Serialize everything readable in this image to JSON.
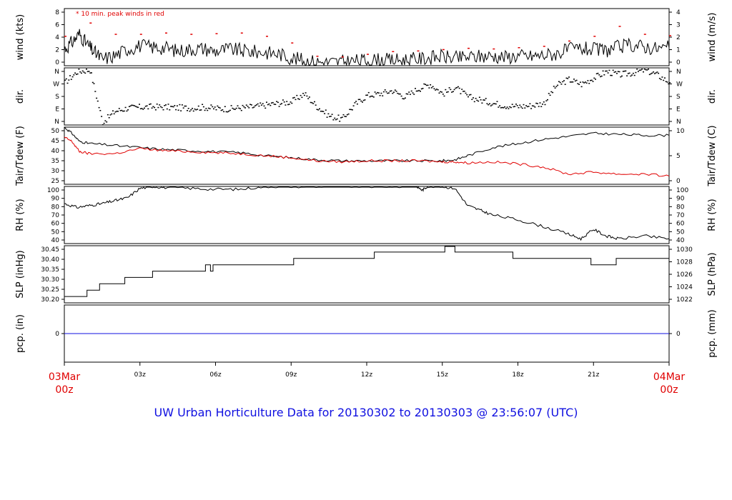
{
  "footer": "UW Urban Horticulture Data for 20130302  to  20130303 @ 23:56:07  (UTC)",
  "colors": {
    "primary": "#000000",
    "secondary": "#e00000",
    "precip": "#1010e0",
    "footer": "#1010e0",
    "edge_time": "#e00000"
  },
  "time_axis": {
    "start": "03Mar 00z",
    "end": "04Mar 00z",
    "start_label": [
      "03Mar",
      "00z"
    ],
    "end_label": [
      "04Mar",
      "00z"
    ],
    "ticks": [
      "03z",
      "06z",
      "09z",
      "12z",
      "15z",
      "18z",
      "21z"
    ]
  },
  "chart_data": [
    {
      "id": "wind",
      "type": "line",
      "ylabel_left": "wind (kts)",
      "ylabel_right": "wind (m/s)",
      "ylim": [
        0,
        8.6
      ],
      "yticks_left": [
        "0",
        "2",
        "4",
        "6",
        "8"
      ],
      "yticks_right": [
        "0",
        "1",
        "2",
        "3",
        "4"
      ],
      "annotation": "10 min. peak winds in red",
      "series": [
        {
          "color": "#000000",
          "x_hours": [
            0,
            0.3,
            0.6,
            0.9,
            1.2,
            1.5,
            2,
            2.5,
            3,
            3.5,
            4,
            4.5,
            5,
            5.5,
            6,
            6.5,
            7,
            7.5,
            8,
            8.5,
            9,
            9.5,
            10,
            10.5,
            11,
            11.5,
            12,
            12.5,
            13,
            13.5,
            14,
            14.5,
            15,
            15.5,
            16,
            16.5,
            17,
            17.5,
            18,
            18.5,
            19,
            19.5,
            20,
            20.5,
            21,
            21.5,
            22,
            22.5,
            23,
            23.5,
            24
          ],
          "values": [
            2.5,
            3.5,
            4.8,
            3.2,
            2,
            1,
            1.5,
            2.5,
            3,
            2.8,
            2.7,
            2.2,
            2.5,
            2.6,
            2.2,
            2.5,
            2.3,
            2.1,
            2,
            1.8,
            1.2,
            0.8,
            0.6,
            0.5,
            0.6,
            0.7,
            0.8,
            0.9,
            0.8,
            0.9,
            1,
            1.2,
            1.4,
            1.1,
            1.3,
            1.4,
            1.5,
            1.3,
            1.5,
            1.4,
            1.6,
            1.8,
            2.4,
            2.6,
            2.4,
            2.3,
            2.8,
            3.1,
            2.9,
            2.6,
            2.7
          ]
        },
        {
          "name": "10 min. peak winds",
          "color": "#e00000",
          "x_hours": [
            0,
            1,
            2,
            3,
            4,
            5,
            6,
            7,
            8,
            9,
            10,
            11,
            12,
            13,
            14,
            15,
            16,
            17,
            18,
            19,
            20,
            21,
            22,
            23,
            24
          ],
          "values": [
            4.5,
            6.5,
            4.8,
            4.8,
            5,
            4.8,
            4.9,
            5,
            4.5,
            3.5,
            1.5,
            1.4,
            1.8,
            2.2,
            2.3,
            2.5,
            2.7,
            2.6,
            2.8,
            3,
            3.8,
            4.5,
            6,
            4.8,
            4.6
          ]
        }
      ]
    },
    {
      "id": "dir",
      "type": "scatter",
      "ylabel_left": "dir.",
      "ylabel_right": "dir.",
      "ylim": [
        0,
        360
      ],
      "yticks_left": [
        "N",
        "E",
        "S",
        "W",
        "N"
      ],
      "yticks_right": [
        "N",
        "E",
        "S",
        "W",
        "N"
      ],
      "series": [
        {
          "color": "#000000",
          "x_hours": [
            0,
            0.5,
            1,
            1.5,
            2,
            2.5,
            3,
            3.5,
            4,
            4.5,
            5,
            5.5,
            6,
            6.5,
            7,
            7.5,
            8,
            8.5,
            9,
            9.5,
            10,
            10.5,
            11,
            11.5,
            12,
            12.5,
            13,
            13.5,
            14,
            14.5,
            15,
            15.5,
            16,
            16.5,
            17,
            17.5,
            18,
            18.5,
            19,
            19.5,
            20,
            20.5,
            21,
            21.5,
            22,
            22.5,
            23,
            23.5,
            24
          ],
          "values": [
            270,
            340,
            350,
            20,
            90,
            110,
            115,
            118,
            116,
            112,
            110,
            115,
            108,
            105,
            112,
            118,
            130,
            140,
            150,
            200,
            120,
            60,
            40,
            130,
            190,
            200,
            220,
            180,
            230,
            260,
            200,
            240,
            180,
            160,
            140,
            125,
            120,
            125,
            140,
            250,
            290,
            260,
            300,
            340,
            320,
            330,
            350,
            320,
            270
          ]
        }
      ]
    },
    {
      "id": "temp",
      "type": "line",
      "ylabel_left": "Tair/Tdew (F)",
      "ylabel_right": "Tair/Tdew (C)",
      "ylim": [
        25,
        53
      ],
      "yticks_left": [
        "25",
        "30",
        "35",
        "40",
        "45",
        "50"
      ],
      "yticks_right": [
        "0",
        "5",
        "10"
      ],
      "series": [
        {
          "name": "Tair",
          "color": "#000000",
          "x_hours": [
            0,
            0.3,
            0.6,
            1,
            2,
            3,
            4,
            5,
            6,
            7,
            8,
            9,
            10,
            11,
            12,
            13,
            14,
            15,
            15.5,
            16,
            17,
            18,
            19,
            20,
            21,
            22,
            23,
            24
          ],
          "values": [
            53,
            50,
            46,
            45,
            44,
            43,
            42,
            41.5,
            41,
            40.5,
            39,
            38,
            37,
            36.5,
            36.5,
            36.5,
            36.5,
            36.5,
            37,
            39,
            43,
            45,
            47,
            48.5,
            50,
            49.5,
            49,
            49
          ]
        },
        {
          "name": "Tdew",
          "color": "#e00000",
          "x_hours": [
            0,
            0.3,
            0.6,
            1,
            2,
            3,
            4,
            5,
            6,
            7,
            8,
            9,
            10,
            11,
            12,
            13,
            14,
            15,
            15.5,
            16,
            17,
            18,
            19,
            20,
            21,
            22,
            23,
            24
          ],
          "values": [
            48,
            46,
            41,
            40,
            40,
            42.5,
            41.5,
            41,
            40.5,
            40,
            39,
            38,
            36.5,
            36,
            36.5,
            36.5,
            36.5,
            36,
            36,
            35.5,
            36,
            35,
            33.5,
            30,
            31,
            30,
            30,
            29
          ]
        }
      ]
    },
    {
      "id": "rh",
      "type": "line",
      "ylabel_left": "RH (%)",
      "ylabel_right": "RH (%)",
      "ylim": [
        40,
        100
      ],
      "yticks_left": [
        "40",
        "50",
        "60",
        "70",
        "80",
        "90",
        "100"
      ],
      "yticks_right": [
        "40",
        "50",
        "60",
        "70",
        "80",
        "90",
        "100"
      ],
      "series": [
        {
          "color": "#000000",
          "x_hours": [
            0,
            0.5,
            1,
            1.5,
            2,
            2.5,
            3,
            3.5,
            4,
            5,
            6,
            7,
            8,
            9,
            10,
            11,
            12,
            13,
            14,
            14.2,
            14.4,
            15,
            15.5,
            16,
            16.5,
            17,
            18,
            19,
            20,
            20.5,
            21,
            21.5,
            22,
            23,
            24
          ],
          "values": [
            82,
            78,
            80,
            82,
            85,
            88,
            98,
            100,
            99,
            98,
            97,
            97,
            100,
            100,
            100,
            100,
            100,
            100,
            100,
            96,
            100,
            100,
            98,
            80,
            75,
            70,
            65,
            58,
            50,
            45,
            55,
            48,
            45,
            48,
            45
          ]
        }
      ]
    },
    {
      "id": "slp",
      "type": "line",
      "ylabel_left": "SLP (inHg)",
      "ylabel_right": "SLP (hPa)",
      "ylim": [
        30.18,
        30.45
      ],
      "yticks_left": [
        "30.20",
        "30.25",
        "30.30",
        "30.35",
        "30.40",
        "30.45"
      ],
      "yticks_right": [
        "1022",
        "1024",
        "1026",
        "1028",
        "1030"
      ],
      "series": [
        {
          "color": "#000000",
          "x_hours": [
            0,
            0.9,
            0.9,
            1.4,
            1.4,
            2.4,
            2.4,
            3.5,
            3.5,
            5.6,
            5.6,
            5.8,
            5.8,
            5.9,
            5.9,
            6.1,
            6.1,
            9.1,
            9.1,
            12.3,
            12.3,
            15.1,
            15.1,
            15.5,
            15.5,
            17.8,
            17.8,
            20.9,
            20.9,
            21.9,
            21.9,
            24
          ],
          "values": [
            30.21,
            30.21,
            30.24,
            30.24,
            30.27,
            30.27,
            30.3,
            30.3,
            30.33,
            30.33,
            30.36,
            30.36,
            30.33,
            30.33,
            30.36,
            30.36,
            30.36,
            30.36,
            30.39,
            30.39,
            30.42,
            30.42,
            30.45,
            30.45,
            30.42,
            30.42,
            30.39,
            30.39,
            30.36,
            30.36,
            30.39,
            30.39
          ]
        }
      ]
    },
    {
      "id": "pcp",
      "type": "line",
      "ylabel_left": "pcp. (in)",
      "ylabel_right": "pcp. (mm)",
      "ylim": [
        -1,
        1
      ],
      "yticks_left": [
        "0"
      ],
      "yticks_right": [
        "0"
      ],
      "series": [
        {
          "color": "#1010e0",
          "x_hours": [
            0,
            24
          ],
          "values": [
            0,
            0
          ]
        }
      ]
    }
  ]
}
